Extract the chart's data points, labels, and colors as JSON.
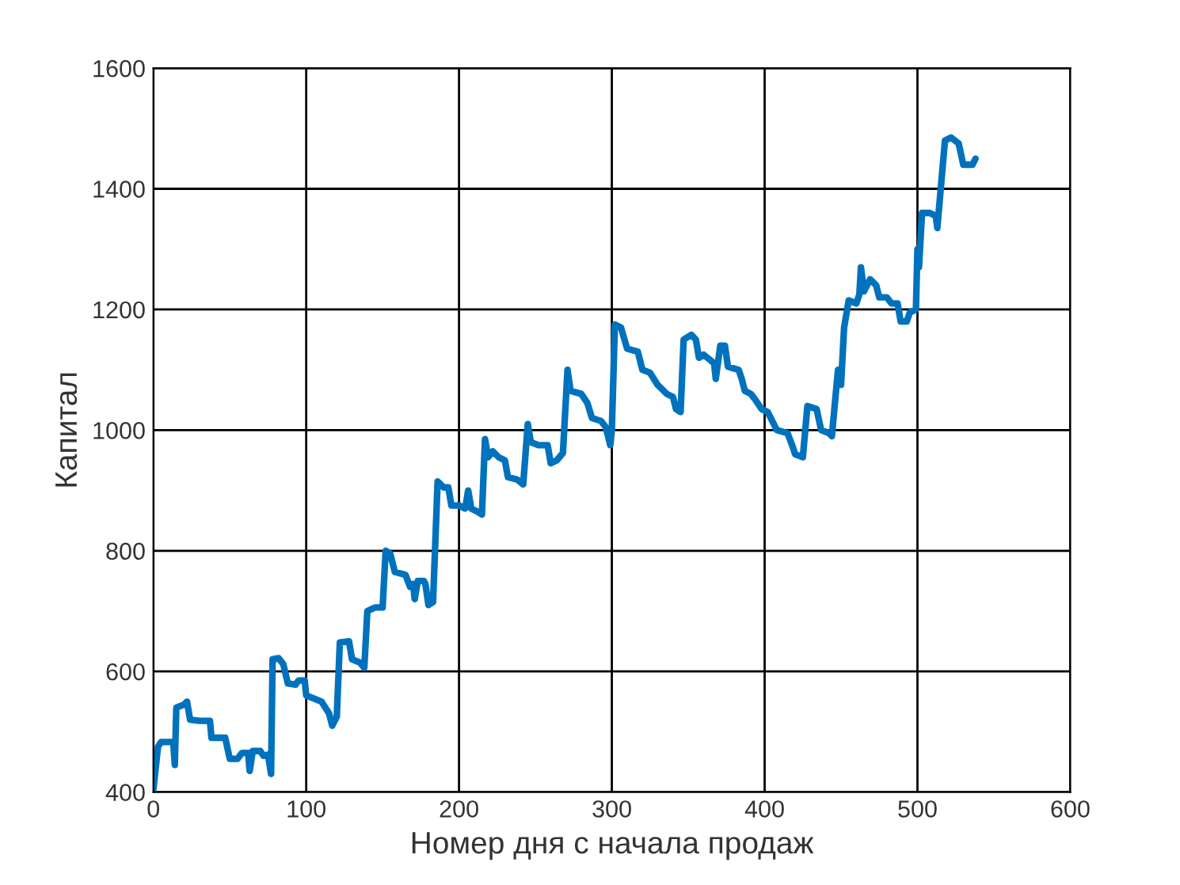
{
  "chart_data": {
    "type": "line",
    "xlabel": "Номер дня с начала продаж",
    "ylabel": "Капитал",
    "x": [
      0,
      3,
      5,
      13,
      14,
      15,
      20,
      22,
      24,
      30,
      37,
      38,
      47,
      50,
      55,
      58,
      62,
      63,
      65,
      70,
      72,
      75,
      77,
      78,
      82,
      85,
      88,
      93,
      95,
      99,
      100,
      105,
      110,
      115,
      117,
      120,
      122,
      128,
      130,
      135,
      138,
      140,
      145,
      150,
      152,
      155,
      158,
      165,
      168,
      170,
      171,
      173,
      177,
      178,
      180,
      183,
      186,
      190,
      193,
      195,
      200,
      204,
      206,
      208,
      212,
      215,
      217,
      219,
      222,
      226,
      230,
      232,
      238,
      242,
      245,
      247,
      252,
      258,
      260,
      264,
      268,
      271,
      273,
      280,
      284,
      287,
      293,
      296,
      298,
      299,
      300,
      302,
      306,
      310,
      317,
      320,
      325,
      330,
      336,
      340,
      342,
      345,
      347,
      352,
      355,
      357,
      360,
      365,
      367,
      368,
      371,
      374,
      376,
      383,
      385,
      387,
      391,
      394,
      398,
      402,
      408,
      415,
      418,
      420,
      425,
      428,
      434,
      437,
      442,
      444,
      448,
      450,
      452,
      455,
      460,
      462,
      463,
      465,
      469,
      473,
      475,
      480,
      483,
      487,
      489,
      493,
      495,
      499,
      500,
      501,
      503,
      508,
      512,
      513,
      518,
      522,
      527,
      530,
      536,
      538
    ],
    "series": [
      {
        "color": "#0072bd",
        "values": [
          405,
          475,
          483,
          483,
          445,
          540,
          545,
          550,
          520,
          518,
          518,
          490,
          490,
          455,
          455,
          465,
          465,
          435,
          468,
          468,
          460,
          462,
          430,
          620,
          622,
          612,
          580,
          578,
          585,
          585,
          560,
          555,
          550,
          530,
          510,
          525,
          648,
          650,
          620,
          615,
          606,
          700,
          706,
          706,
          800,
          795,
          765,
          760,
          740,
          745,
          720,
          750,
          750,
          745,
          710,
          715,
          915,
          905,
          905,
          875,
          875,
          870,
          900,
          870,
          865,
          860,
          985,
          955,
          965,
          955,
          950,
          922,
          918,
          910,
          1010,
          980,
          975,
          975,
          945,
          950,
          962,
          1100,
          1065,
          1060,
          1045,
          1020,
          1015,
          1005,
          985,
          975,
          1000,
          1175,
          1170,
          1135,
          1130,
          1100,
          1095,
          1075,
          1060,
          1055,
          1035,
          1030,
          1150,
          1158,
          1150,
          1120,
          1125,
          1115,
          1110,
          1085,
          1140,
          1140,
          1105,
          1100,
          1085,
          1065,
          1060,
          1050,
          1035,
          1030,
          1000,
          995,
          975,
          960,
          955,
          1040,
          1035,
          1000,
          995,
          990,
          1100,
          1075,
          1170,
          1215,
          1210,
          1225,
          1270,
          1230,
          1250,
          1240,
          1220,
          1220,
          1210,
          1210,
          1180,
          1180,
          1195,
          1200,
          1300,
          1270,
          1360,
          1360,
          1355,
          1335,
          1480,
          1485,
          1475,
          1440,
          1440,
          1450
        ]
      }
    ],
    "xlim": [
      0,
      600
    ],
    "xticks": [
      0,
      100,
      200,
      300,
      400,
      500,
      600
    ],
    "ylim": [
      400,
      1600
    ],
    "yticks": [
      400,
      600,
      800,
      1000,
      1200,
      1400,
      1600
    ],
    "grid": true,
    "marker": "none",
    "line_style": "solid"
  }
}
